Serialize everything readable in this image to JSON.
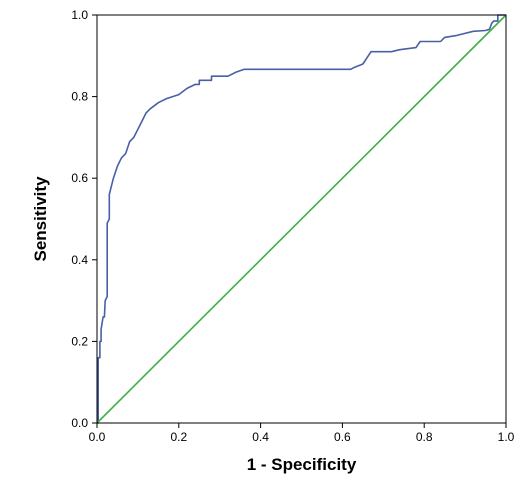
{
  "chart_data": {
    "type": "line",
    "xlabel": "1 - Specificity",
    "ylabel": "Sensitivity",
    "xlim": [
      0.0,
      1.0
    ],
    "ylim": [
      0.0,
      1.0
    ],
    "x_ticks": [
      "0.0",
      "0.2",
      "0.4",
      "0.6",
      "0.8",
      "1.0"
    ],
    "y_ticks": [
      "0.0",
      "0.2",
      "0.4",
      "0.6",
      "0.8",
      "1.0"
    ],
    "grid": false,
    "series": [
      {
        "color": "#4a5fa6",
        "points": [
          [
            0.0,
            0.0
          ],
          [
            0.003,
            0.0
          ],
          [
            0.003,
            0.16
          ],
          [
            0.007,
            0.16
          ],
          [
            0.007,
            0.2
          ],
          [
            0.01,
            0.2
          ],
          [
            0.01,
            0.23
          ],
          [
            0.015,
            0.26
          ],
          [
            0.018,
            0.26
          ],
          [
            0.02,
            0.3
          ],
          [
            0.025,
            0.31
          ],
          [
            0.025,
            0.49
          ],
          [
            0.03,
            0.5
          ],
          [
            0.03,
            0.56
          ],
          [
            0.035,
            0.58
          ],
          [
            0.04,
            0.6
          ],
          [
            0.05,
            0.63
          ],
          [
            0.06,
            0.65
          ],
          [
            0.07,
            0.66
          ],
          [
            0.08,
            0.69
          ],
          [
            0.09,
            0.7
          ],
          [
            0.1,
            0.72
          ],
          [
            0.11,
            0.74
          ],
          [
            0.12,
            0.76
          ],
          [
            0.13,
            0.77
          ],
          [
            0.15,
            0.785
          ],
          [
            0.17,
            0.795
          ],
          [
            0.2,
            0.805
          ],
          [
            0.22,
            0.82
          ],
          [
            0.24,
            0.83
          ],
          [
            0.25,
            0.83
          ],
          [
            0.25,
            0.84
          ],
          [
            0.28,
            0.84
          ],
          [
            0.28,
            0.85
          ],
          [
            0.32,
            0.85
          ],
          [
            0.34,
            0.86
          ],
          [
            0.36,
            0.867
          ],
          [
            0.45,
            0.867
          ],
          [
            0.5,
            0.867
          ],
          [
            0.55,
            0.867
          ],
          [
            0.62,
            0.867
          ],
          [
            0.63,
            0.872
          ],
          [
            0.65,
            0.88
          ],
          [
            0.67,
            0.91
          ],
          [
            0.72,
            0.91
          ],
          [
            0.74,
            0.915
          ],
          [
            0.78,
            0.92
          ],
          [
            0.79,
            0.935
          ],
          [
            0.84,
            0.935
          ],
          [
            0.85,
            0.945
          ],
          [
            0.88,
            0.95
          ],
          [
            0.92,
            0.96
          ],
          [
            0.95,
            0.962
          ],
          [
            0.96,
            0.965
          ],
          [
            0.965,
            0.98
          ],
          [
            0.97,
            0.985
          ],
          [
            0.98,
            0.985
          ],
          [
            0.98,
            1.0
          ],
          [
            1.0,
            1.0
          ]
        ]
      },
      {
        "color": "#3cb043",
        "points": [
          [
            0.0,
            0.0
          ],
          [
            1.0,
            1.0
          ]
        ]
      }
    ]
  }
}
